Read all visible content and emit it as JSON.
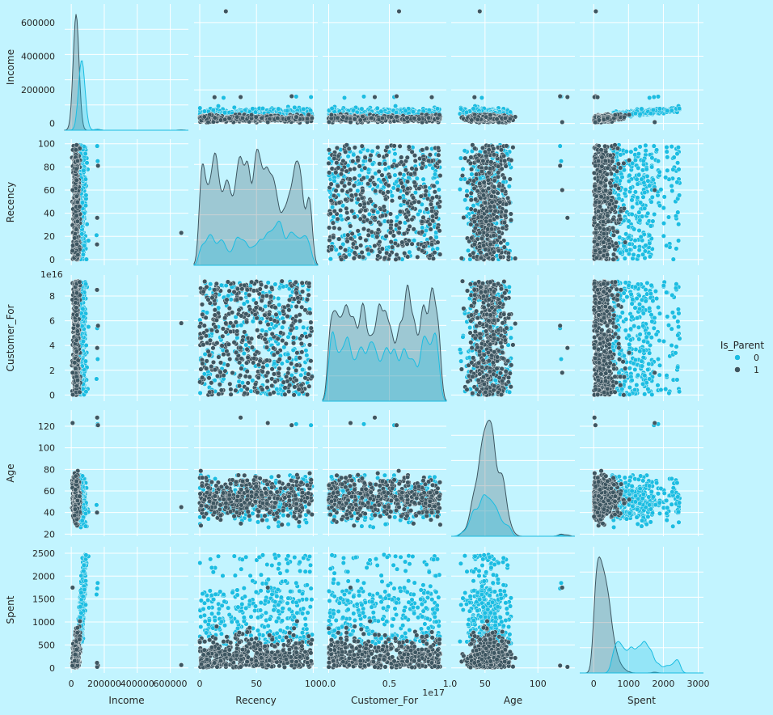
{
  "chart_data": {
    "type": "scatter",
    "subtype": "pairplot",
    "variables": [
      "Income",
      "Recency",
      "Customer_For",
      "Age",
      "Spent"
    ],
    "hue": {
      "title": "Is_Parent",
      "levels": [
        {
          "name": "0",
          "color": "#1bbde2"
        },
        {
          "name": "1",
          "color": "#3d5661"
        }
      ]
    },
    "diagonal": "kde",
    "grid": true,
    "legend_position": "right",
    "axes": {
      "Income": {
        "range": [
          -40000,
          710000
        ],
        "ticks": [
          0,
          200000,
          400000,
          600000
        ],
        "tick_labels": [
          "0",
          "200000",
          "400000",
          "600000"
        ]
      },
      "Recency": {
        "range": [
          -5,
          104
        ],
        "ticks": [
          0,
          20,
          40,
          60,
          80,
          100
        ],
        "tick_labels": [
          "0",
          "20",
          "40",
          "60",
          "80",
          "100"
        ],
        "x_tick_labels": [
          "0",
          "50",
          "100"
        ],
        "x_ticks": [
          0,
          50,
          100
        ]
      },
      "Customer_For": {
        "range": [
          -5000000000000000.0,
          9.7e+16
        ],
        "ticks": [
          0,
          2e+16,
          4e+16,
          6e+16,
          8e+16
        ],
        "tick_labels": [
          "0",
          "2",
          "4",
          "6",
          "8"
        ],
        "y_offset_text": "1e16",
        "x_ticks": [
          0,
          5e+16,
          1e+17
        ],
        "x_tick_labels": [
          "0.0",
          "0.5",
          "1.0"
        ],
        "x_offset_text": "1e17"
      },
      "Age": {
        "range": [
          18,
          135
        ],
        "ticks": [
          20,
          40,
          60,
          80,
          100,
          120
        ],
        "tick_labels": [
          "20",
          "40",
          "60",
          "80",
          "100",
          "120"
        ],
        "x_ticks": [
          50,
          100
        ],
        "x_tick_labels": [
          "50",
          "100"
        ]
      },
      "Spent": {
        "range": [
          -110,
          2640
        ],
        "ticks": [
          0,
          500,
          1000,
          1500,
          2000,
          2500
        ],
        "tick_labels": [
          "0",
          "500",
          "1000",
          "1500",
          "2000",
          "2500"
        ],
        "x_range": [
          -400,
          3150
        ],
        "x_ticks": [
          0,
          1000,
          2000,
          3000
        ],
        "x_tick_labels": [
          "0",
          "1000",
          "2000",
          "3000"
        ]
      }
    },
    "outliers": [
      {
        "Income": 666666,
        "Recency": 23,
        "Customer_For": 5.8e+16,
        "Age": 45,
        "Spent": 62,
        "hue": "1"
      },
      {
        "Income": 157000,
        "Recency": 98,
        "Customer_For": 5.4e+16,
        "Age": 121,
        "Spent": 1730,
        "hue": "0"
      },
      {
        "Income": 160000,
        "Recency": 85,
        "Customer_For": 2.9e+16,
        "Age": 122,
        "Spent": 1850,
        "hue": "0"
      },
      {
        "Income": 162000,
        "Recency": 81,
        "Customer_For": 5.6e+16,
        "Age": 121,
        "Spent": 50,
        "hue": "1"
      },
      {
        "Income": 157000,
        "Recency": 36,
        "Customer_For": 3.8e+16,
        "Age": 128,
        "Spent": 22,
        "hue": "1"
      },
      {
        "Income": 153000,
        "Recency": 21,
        "Customer_For": 1.3e+16,
        "Age": 47,
        "Spent": 1600,
        "hue": "0"
      },
      {
        "Income": 156000,
        "Recency": 13,
        "Customer_For": 8.5e+16,
        "Age": 40,
        "Spent": 110,
        "hue": "1"
      },
      {
        "Income": 8000,
        "Recency": 60,
        "Customer_For": 1.8e+16,
        "Age": 123,
        "Spent": 1750,
        "hue": "1"
      }
    ],
    "clusters": {
      "Income": {
        "0": [
          70000,
          18000
        ],
        "1": [
          45000,
          17000
        ]
      },
      "Recency": {
        "0": [
          50,
          29
        ],
        "1": [
          49,
          29
        ]
      },
      "Customer_For": {
        "0": [
          4.8e+16,
          2.2e+16
        ],
        "1": [
          4.5e+16,
          2.2e+16
        ]
      },
      "Age": {
        "0": [
          55,
          12
        ],
        "1": [
          54,
          9
        ]
      },
      "Spent": {
        "0": [
          1150,
          520
        ],
        "1": [
          270,
          300
        ]
      }
    },
    "kde_peaks": {
      "Income": {
        "0": 325000,
        "1": 665000
      },
      "Recency": {
        "0": 35,
        "1": 98
      },
      "Customer_For": {
        "0": 0,
        "1": 0
      },
      "Age": {
        "0": 43,
        "1": 128
      },
      "Spent": {
        "0": 270,
        "1": 2500
      }
    }
  }
}
